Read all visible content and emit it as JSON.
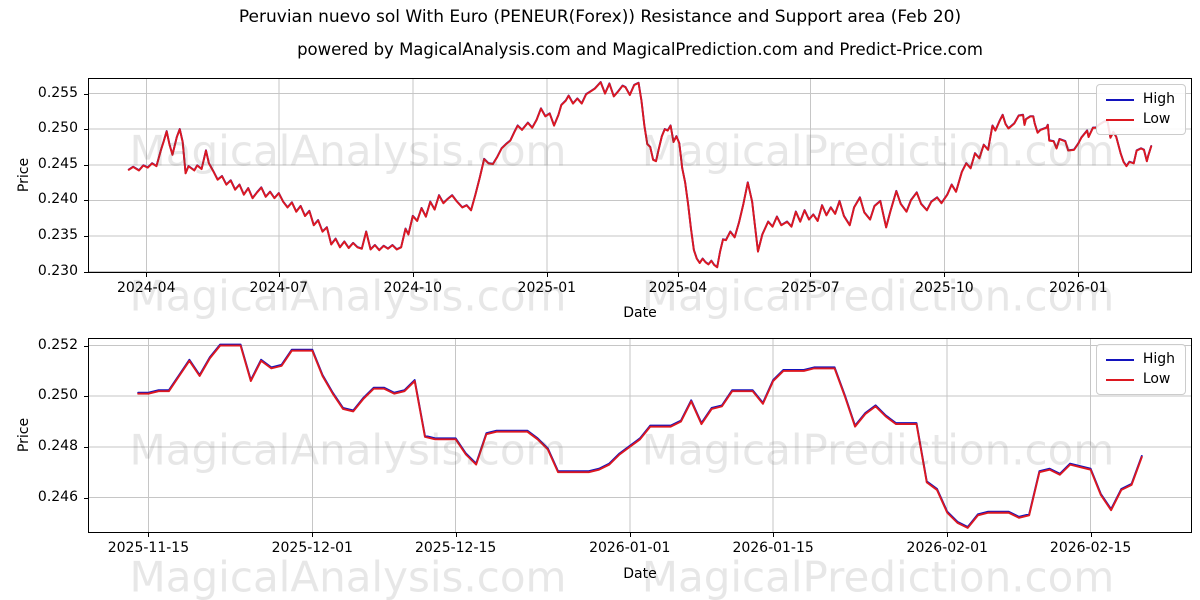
{
  "title": "Peruvian nuevo sol With Euro (PENEUR(Forex)) Resistance and Support area (Feb 20)",
  "subtitle": "powered by MagicalAnalysis.com and MagicalPrediction.com and Predict-Price.com",
  "watermarks": {
    "left": "MagicalAnalysis.com",
    "right": "MagicalPrediction.com"
  },
  "legend": {
    "high_label": "High",
    "low_label": "Low"
  },
  "colors": {
    "high_line": "#1313bd",
    "low_line": "#dc1820",
    "grid": "#c6c6c6",
    "spine": "#000000",
    "background": "#ffffff"
  },
  "chart_data": [
    {
      "type": "line",
      "name": "top",
      "xlabel": "Date",
      "ylabel": "Price",
      "x_epoch": "2024-03-20",
      "x_unit": "days since 2024-03-20",
      "xlim": [
        -28,
        730
      ],
      "ylim": [
        0.2298,
        0.2572
      ],
      "grid": true,
      "legend_position": "upper right",
      "xticks": [
        {
          "pos": 12,
          "label": "2024-04"
        },
        {
          "pos": 103,
          "label": "2024-07"
        },
        {
          "pos": 195,
          "label": "2024-10"
        },
        {
          "pos": 287,
          "label": "2025-01"
        },
        {
          "pos": 377,
          "label": "2025-04"
        },
        {
          "pos": 468,
          "label": "2025-07"
        },
        {
          "pos": 560,
          "label": "2025-10"
        },
        {
          "pos": 652,
          "label": "2026-01"
        }
      ],
      "yticks": [
        {
          "pos": 0.23,
          "label": "0.230"
        },
        {
          "pos": 0.235,
          "label": "0.235"
        },
        {
          "pos": 0.24,
          "label": "0.240"
        },
        {
          "pos": 0.245,
          "label": "0.245"
        },
        {
          "pos": 0.25,
          "label": "0.250"
        },
        {
          "pos": 0.255,
          "label": "0.255"
        }
      ],
      "series_names": [
        "High",
        "Low"
      ],
      "high_note": "High series visually coincides with Low (offset below)",
      "high_offset": 4e-05,
      "low_points": [
        [
          0,
          0.2443
        ],
        [
          3,
          0.2447
        ],
        [
          7,
          0.2442
        ],
        [
          10,
          0.2449
        ],
        [
          13,
          0.2446
        ],
        [
          16,
          0.2452
        ],
        [
          19,
          0.2448
        ],
        [
          22,
          0.247
        ],
        [
          24,
          0.2483
        ],
        [
          26,
          0.2497
        ],
        [
          28,
          0.2478
        ],
        [
          30,
          0.2464
        ],
        [
          33,
          0.2489
        ],
        [
          35,
          0.25
        ],
        [
          37,
          0.2482
        ],
        [
          39,
          0.2438
        ],
        [
          41,
          0.2448
        ],
        [
          43,
          0.2445
        ],
        [
          45,
          0.2442
        ],
        [
          47,
          0.2449
        ],
        [
          50,
          0.2444
        ],
        [
          53,
          0.247
        ],
        [
          55,
          0.2452
        ],
        [
          58,
          0.2441
        ],
        [
          61,
          0.2429
        ],
        [
          64,
          0.2434
        ],
        [
          67,
          0.2422
        ],
        [
          70,
          0.2428
        ],
        [
          73,
          0.2415
        ],
        [
          76,
          0.2422
        ],
        [
          79,
          0.2408
        ],
        [
          82,
          0.2417
        ],
        [
          85,
          0.2403
        ],
        [
          88,
          0.2411
        ],
        [
          91,
          0.2418
        ],
        [
          94,
          0.2405
        ],
        [
          97,
          0.2412
        ],
        [
          100,
          0.2403
        ],
        [
          103,
          0.241
        ],
        [
          106,
          0.2398
        ],
        [
          109,
          0.239
        ],
        [
          112,
          0.2397
        ],
        [
          115,
          0.2384
        ],
        [
          118,
          0.2392
        ],
        [
          121,
          0.2378
        ],
        [
          124,
          0.2385
        ],
        [
          127,
          0.2365
        ],
        [
          130,
          0.2372
        ],
        [
          133,
          0.2356
        ],
        [
          136,
          0.2362
        ],
        [
          139,
          0.2338
        ],
        [
          142,
          0.2346
        ],
        [
          145,
          0.2334
        ],
        [
          148,
          0.2342
        ],
        [
          151,
          0.2333
        ],
        [
          154,
          0.234
        ],
        [
          157,
          0.2334
        ],
        [
          160,
          0.2332
        ],
        [
          163,
          0.2356
        ],
        [
          166,
          0.2331
        ],
        [
          169,
          0.2337
        ],
        [
          172,
          0.233
        ],
        [
          175,
          0.2336
        ],
        [
          178,
          0.2332
        ],
        [
          181,
          0.2337
        ],
        [
          184,
          0.2331
        ],
        [
          187,
          0.2334
        ],
        [
          190,
          0.236
        ],
        [
          192,
          0.2352
        ],
        [
          195,
          0.2378
        ],
        [
          198,
          0.2371
        ],
        [
          201,
          0.2389
        ],
        [
          204,
          0.2377
        ],
        [
          207,
          0.2398
        ],
        [
          210,
          0.2387
        ],
        [
          213,
          0.2407
        ],
        [
          216,
          0.2396
        ],
        [
          219,
          0.2402
        ],
        [
          222,
          0.2407
        ],
        [
          225,
          0.2399
        ],
        [
          229,
          0.239
        ],
        [
          232,
          0.2393
        ],
        [
          235,
          0.2386
        ],
        [
          238,
          0.2408
        ],
        [
          241,
          0.2432
        ],
        [
          244,
          0.2458
        ],
        [
          247,
          0.2452
        ],
        [
          250,
          0.2451
        ],
        [
          253,
          0.2461
        ],
        [
          256,
          0.2473
        ],
        [
          259,
          0.2479
        ],
        [
          262,
          0.2484
        ],
        [
          265,
          0.2497
        ],
        [
          267,
          0.2505
        ],
        [
          270,
          0.2499
        ],
        [
          274,
          0.2509
        ],
        [
          277,
          0.2502
        ],
        [
          280,
          0.2513
        ],
        [
          283,
          0.2529
        ],
        [
          286,
          0.2518
        ],
        [
          289,
          0.2522
        ],
        [
          292,
          0.2505
        ],
        [
          295,
          0.252
        ],
        [
          297,
          0.2534
        ],
        [
          300,
          0.254
        ],
        [
          302,
          0.2547
        ],
        [
          305,
          0.2536
        ],
        [
          308,
          0.2543
        ],
        [
          311,
          0.2536
        ],
        [
          314,
          0.2549
        ],
        [
          317,
          0.2553
        ],
        [
          320,
          0.2557
        ],
        [
          324,
          0.2566
        ],
        [
          327,
          0.255
        ],
        [
          330,
          0.2564
        ],
        [
          333,
          0.2546
        ],
        [
          336,
          0.2553
        ],
        [
          339,
          0.2561
        ],
        [
          341,
          0.2559
        ],
        [
          344,
          0.2548
        ],
        [
          347,
          0.2562
        ],
        [
          350,
          0.2565
        ],
        [
          352,
          0.254
        ],
        [
          354,
          0.2505
        ],
        [
          356,
          0.2479
        ],
        [
          358,
          0.2475
        ],
        [
          360,
          0.2457
        ],
        [
          362,
          0.2455
        ],
        [
          364,
          0.2473
        ],
        [
          366,
          0.249
        ],
        [
          368,
          0.25
        ],
        [
          370,
          0.2498
        ],
        [
          372,
          0.2505
        ],
        [
          374,
          0.2482
        ],
        [
          376,
          0.249
        ],
        [
          378,
          0.248
        ],
        [
          380,
          0.2445
        ],
        [
          382,
          0.2425
        ],
        [
          384,
          0.2395
        ],
        [
          386,
          0.236
        ],
        [
          388,
          0.233
        ],
        [
          390,
          0.2318
        ],
        [
          392,
          0.2312
        ],
        [
          394,
          0.2318
        ],
        [
          396,
          0.2313
        ],
        [
          398,
          0.231
        ],
        [
          400,
          0.2315
        ],
        [
          402,
          0.2309
        ],
        [
          404,
          0.2306
        ],
        [
          406,
          0.2328
        ],
        [
          408,
          0.2345
        ],
        [
          410,
          0.2344
        ],
        [
          413,
          0.2356
        ],
        [
          416,
          0.2348
        ],
        [
          419,
          0.2369
        ],
        [
          422,
          0.2395
        ],
        [
          425,
          0.2425
        ],
        [
          428,
          0.2398
        ],
        [
          432,
          0.2328
        ],
        [
          435,
          0.2352
        ],
        [
          439,
          0.237
        ],
        [
          442,
          0.2363
        ],
        [
          445,
          0.2377
        ],
        [
          448,
          0.2365
        ],
        [
          452,
          0.237
        ],
        [
          455,
          0.2363
        ],
        [
          458,
          0.2384
        ],
        [
          461,
          0.237
        ],
        [
          464,
          0.2386
        ],
        [
          467,
          0.2373
        ],
        [
          470,
          0.238
        ],
        [
          473,
          0.2371
        ],
        [
          476,
          0.2393
        ],
        [
          479,
          0.2379
        ],
        [
          482,
          0.239
        ],
        [
          485,
          0.2381
        ],
        [
          488,
          0.2399
        ],
        [
          491,
          0.2378
        ],
        [
          495,
          0.2365
        ],
        [
          498,
          0.239
        ],
        [
          502,
          0.2404
        ],
        [
          505,
          0.2383
        ],
        [
          509,
          0.2373
        ],
        [
          512,
          0.2392
        ],
        [
          516,
          0.2399
        ],
        [
          520,
          0.2362
        ],
        [
          523,
          0.2385
        ],
        [
          527,
          0.2413
        ],
        [
          530,
          0.2395
        ],
        [
          534,
          0.2384
        ],
        [
          537,
          0.24
        ],
        [
          541,
          0.2411
        ],
        [
          544,
          0.2395
        ],
        [
          548,
          0.2386
        ],
        [
          551,
          0.2398
        ],
        [
          555,
          0.2404
        ],
        [
          558,
          0.2396
        ],
        [
          562,
          0.2408
        ],
        [
          565,
          0.2422
        ],
        [
          568,
          0.2412
        ],
        [
          572,
          0.244
        ],
        [
          575,
          0.2452
        ],
        [
          578,
          0.2445
        ],
        [
          581,
          0.2466
        ],
        [
          584,
          0.2459
        ],
        [
          587,
          0.2478
        ],
        [
          590,
          0.2471
        ],
        [
          593,
          0.2505
        ],
        [
          595,
          0.2498
        ],
        [
          598,
          0.2512
        ],
        [
          600,
          0.252
        ],
        [
          602,
          0.2507
        ],
        [
          604,
          0.2501
        ],
        [
          608,
          0.2508
        ],
        [
          611,
          0.2519
        ],
        [
          614,
          0.252
        ],
        [
          615,
          0.2506
        ],
        [
          616,
          0.2514
        ],
        [
          619,
          0.2518
        ],
        [
          621,
          0.2518
        ],
        [
          622,
          0.2508
        ],
        [
          624,
          0.2495
        ],
        [
          626,
          0.2499
        ],
        [
          630,
          0.2502
        ],
        [
          631,
          0.2506
        ],
        [
          632,
          0.2484
        ],
        [
          635,
          0.2483
        ],
        [
          637,
          0.2473
        ],
        [
          639,
          0.2486
        ],
        [
          643,
          0.2483
        ],
        [
          645,
          0.247
        ],
        [
          649,
          0.2471
        ],
        [
          652,
          0.248
        ],
        [
          654,
          0.2488
        ],
        [
          658,
          0.2498
        ],
        [
          659,
          0.2489
        ],
        [
          662,
          0.2502
        ],
        [
          664,
          0.2502
        ],
        [
          666,
          0.2506
        ],
        [
          670,
          0.2511
        ],
        [
          672,
          0.2511
        ],
        [
          674,
          0.2488
        ],
        [
          676,
          0.2496
        ],
        [
          678,
          0.2489
        ],
        [
          681,
          0.2466
        ],
        [
          683,
          0.2454
        ],
        [
          685,
          0.2448
        ],
        [
          687,
          0.2454
        ],
        [
          690,
          0.2452
        ],
        [
          692,
          0.247
        ],
        [
          695,
          0.2473
        ],
        [
          697,
          0.2471
        ],
        [
          699,
          0.2455
        ],
        [
          700,
          0.2463
        ],
        [
          702,
          0.2476
        ]
      ]
    },
    {
      "type": "line",
      "name": "bottom",
      "xlabel": "Date",
      "ylabel": "Price",
      "x_epoch": "2025-11-14",
      "x_unit": "days since 2025-11-14",
      "xlim": [
        -4.9,
        102.9
      ],
      "ylim": [
        0.2446,
        0.2523
      ],
      "grid": true,
      "legend_position": "upper right",
      "xticks": [
        {
          "pos": 1,
          "label": "2025-11-15"
        },
        {
          "pos": 17,
          "label": "2025-12-01"
        },
        {
          "pos": 31,
          "label": "2025-12-15"
        },
        {
          "pos": 48,
          "label": "2026-01-01"
        },
        {
          "pos": 62,
          "label": "2026-01-15"
        },
        {
          "pos": 79,
          "label": "2026-02-01"
        },
        {
          "pos": 93,
          "label": "2026-02-15"
        }
      ],
      "yticks": [
        {
          "pos": 0.246,
          "label": "0.246"
        },
        {
          "pos": 0.248,
          "label": "0.248"
        },
        {
          "pos": 0.25,
          "label": "0.250"
        },
        {
          "pos": 0.252,
          "label": "0.252"
        }
      ],
      "series_names": [
        "High",
        "Low"
      ],
      "high_note": "High series visually coincides with Low (offset below)",
      "high_offset": 4e-05,
      "low_daily_values": [
        0.2501,
        0.2501,
        0.2502,
        0.2502,
        0.2508,
        0.2514,
        0.2508,
        0.2515,
        0.252,
        0.252,
        0.252,
        0.2506,
        0.2514,
        0.2511,
        0.2512,
        0.2518,
        0.2518,
        0.2518,
        0.2508,
        0.2501,
        0.2495,
        0.2494,
        0.2499,
        0.2503,
        0.2503,
        0.2501,
        0.2502,
        0.2506,
        0.2484,
        0.2483,
        0.2483,
        0.2483,
        0.2477,
        0.2473,
        0.2485,
        0.2486,
        0.2486,
        0.2486,
        0.2486,
        0.2483,
        0.2479,
        0.247,
        0.247,
        0.247,
        0.247,
        0.2471,
        0.2473,
        0.2477,
        0.248,
        0.2483,
        0.2488,
        0.2488,
        0.2488,
        0.249,
        0.2498,
        0.2489,
        0.2495,
        0.2496,
        0.2502,
        0.2502,
        0.2502,
        0.2497,
        0.2506,
        0.251,
        0.251,
        0.251,
        0.2511,
        0.2511,
        0.2511,
        0.25,
        0.2488,
        0.2493,
        0.2496,
        0.2492,
        0.2489,
        0.2489,
        0.2489,
        0.2466,
        0.2463,
        0.2454,
        0.245,
        0.2448,
        0.2453,
        0.2454,
        0.2454,
        0.2454,
        0.2452,
        0.2453,
        0.247,
        0.2471,
        0.2469,
        0.2473,
        0.2472,
        0.2471,
        0.2461,
        0.2455,
        0.2463,
        0.2465,
        0.2476
      ]
    }
  ]
}
